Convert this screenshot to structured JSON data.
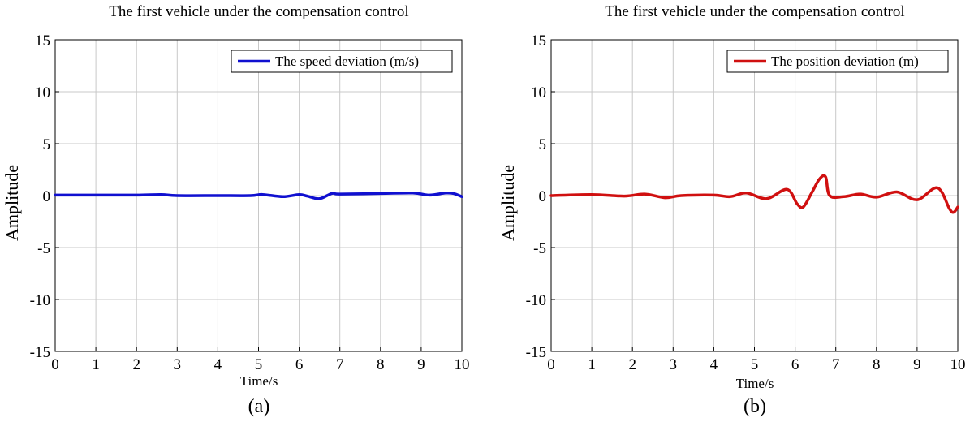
{
  "chart_data": [
    {
      "type": "line",
      "title": "The first vehicle under the compensation control",
      "xlabel": "Time/s",
      "ylabel": "Amplitude",
      "caption": "(a)",
      "xlim": [
        0,
        10
      ],
      "ylim": [
        -15,
        15
      ],
      "xticks": [
        "0",
        "1",
        "2",
        "3",
        "4",
        "5",
        "6",
        "7",
        "8",
        "9",
        "10"
      ],
      "yticks": [
        "15",
        "10",
        "5",
        "0",
        "-5",
        "-10",
        "-15"
      ],
      "grid": true,
      "legend_position": "top-right",
      "series": [
        {
          "name": "The speed deviation (m/s)",
          "color": "#1010d0",
          "x": [
            0,
            1,
            2,
            2.6,
            3,
            4,
            4.8,
            5.1,
            5.6,
            6.0,
            6.2,
            6.5,
            6.8,
            7.0,
            8.0,
            8.8,
            9.2,
            9.6,
            9.8,
            10
          ],
          "y": [
            0.05,
            0.05,
            0.05,
            0.1,
            0.0,
            0.0,
            0.0,
            0.1,
            -0.1,
            0.1,
            -0.05,
            -0.3,
            0.2,
            0.15,
            0.2,
            0.25,
            0.05,
            0.25,
            0.2,
            -0.1
          ]
        }
      ]
    },
    {
      "type": "line",
      "title": "The first vehicle under the compensation control",
      "xlabel": "Time/s",
      "ylabel": "Amplitude",
      "caption": "(b)",
      "xlim": [
        0,
        10
      ],
      "ylim": [
        -15,
        15
      ],
      "xticks": [
        "0",
        "1",
        "2",
        "3",
        "4",
        "5",
        "6",
        "7",
        "8",
        "9",
        "10"
      ],
      "yticks": [
        "15",
        "10",
        "5",
        "0",
        "-5",
        "-10",
        "-15"
      ],
      "grid": true,
      "legend_position": "top-right",
      "series": [
        {
          "name": "The position deviation (m)",
          "color": "#d01010",
          "x": [
            0,
            1,
            1.8,
            2.3,
            2.8,
            3.2,
            4.0,
            4.4,
            4.8,
            5.3,
            5.8,
            6.05,
            6.2,
            6.4,
            6.6,
            6.75,
            6.85,
            7.2,
            7.6,
            8.0,
            8.5,
            9.0,
            9.5,
            9.8,
            9.9,
            10
          ],
          "y": [
            0.0,
            0.1,
            -0.05,
            0.15,
            -0.2,
            0.0,
            0.05,
            -0.1,
            0.25,
            -0.3,
            0.6,
            -0.8,
            -1.1,
            0.2,
            1.6,
            1.8,
            0.0,
            -0.1,
            0.15,
            -0.15,
            0.35,
            -0.4,
            0.75,
            -1.3,
            -1.6,
            -1.1
          ]
        }
      ]
    }
  ]
}
